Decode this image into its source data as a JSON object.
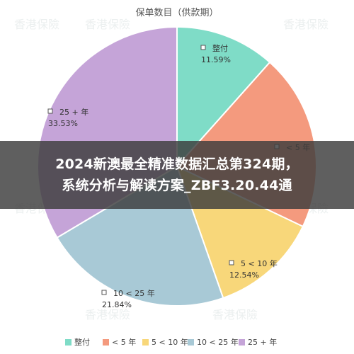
{
  "chart_data": {
    "type": "pie",
    "title": "保单数目（供款期）",
    "categories": [
      "整付",
      "< 5 年",
      "5 < 10 年",
      "10 < 25 年",
      "25 + 年"
    ],
    "values": [
      11.59,
      20.5,
      12.54,
      21.84,
      33.53
    ],
    "data_labels": [
      "11.59%",
      "",
      "12.54%",
      "21.84%",
      "33.53%"
    ],
    "colors": [
      "#7fdcc7",
      "#f49a7e",
      "#f8d77a",
      "#a8c9d6",
      "#c5a4d8"
    ],
    "legend_position": "bottom"
  },
  "overlay": {
    "line1": "2024新澳最全精准数据汇总第324期，",
    "line2": "系统分析与解读方案_ZBF3.20.44通"
  },
  "watermark": "香港保險"
}
